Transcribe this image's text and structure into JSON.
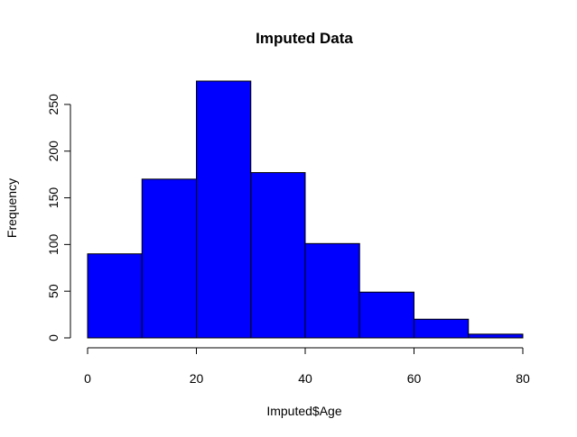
{
  "chart_data": {
    "type": "bar",
    "title": "Imputed Data",
    "xlabel": "Imputed$Age",
    "ylabel": "Frequency",
    "bin_edges": [
      0,
      10,
      20,
      30,
      40,
      50,
      60,
      70,
      80
    ],
    "values": [
      90,
      170,
      275,
      177,
      101,
      49,
      20,
      4
    ],
    "x_ticks": [
      0,
      20,
      40,
      60,
      80
    ],
    "y_ticks": [
      0,
      50,
      100,
      150,
      200,
      250
    ],
    "xlim": [
      0,
      80
    ],
    "ylim": [
      0,
      275
    ],
    "grid": false,
    "bar_color": "#0000FF",
    "edge_color": "#000000"
  }
}
